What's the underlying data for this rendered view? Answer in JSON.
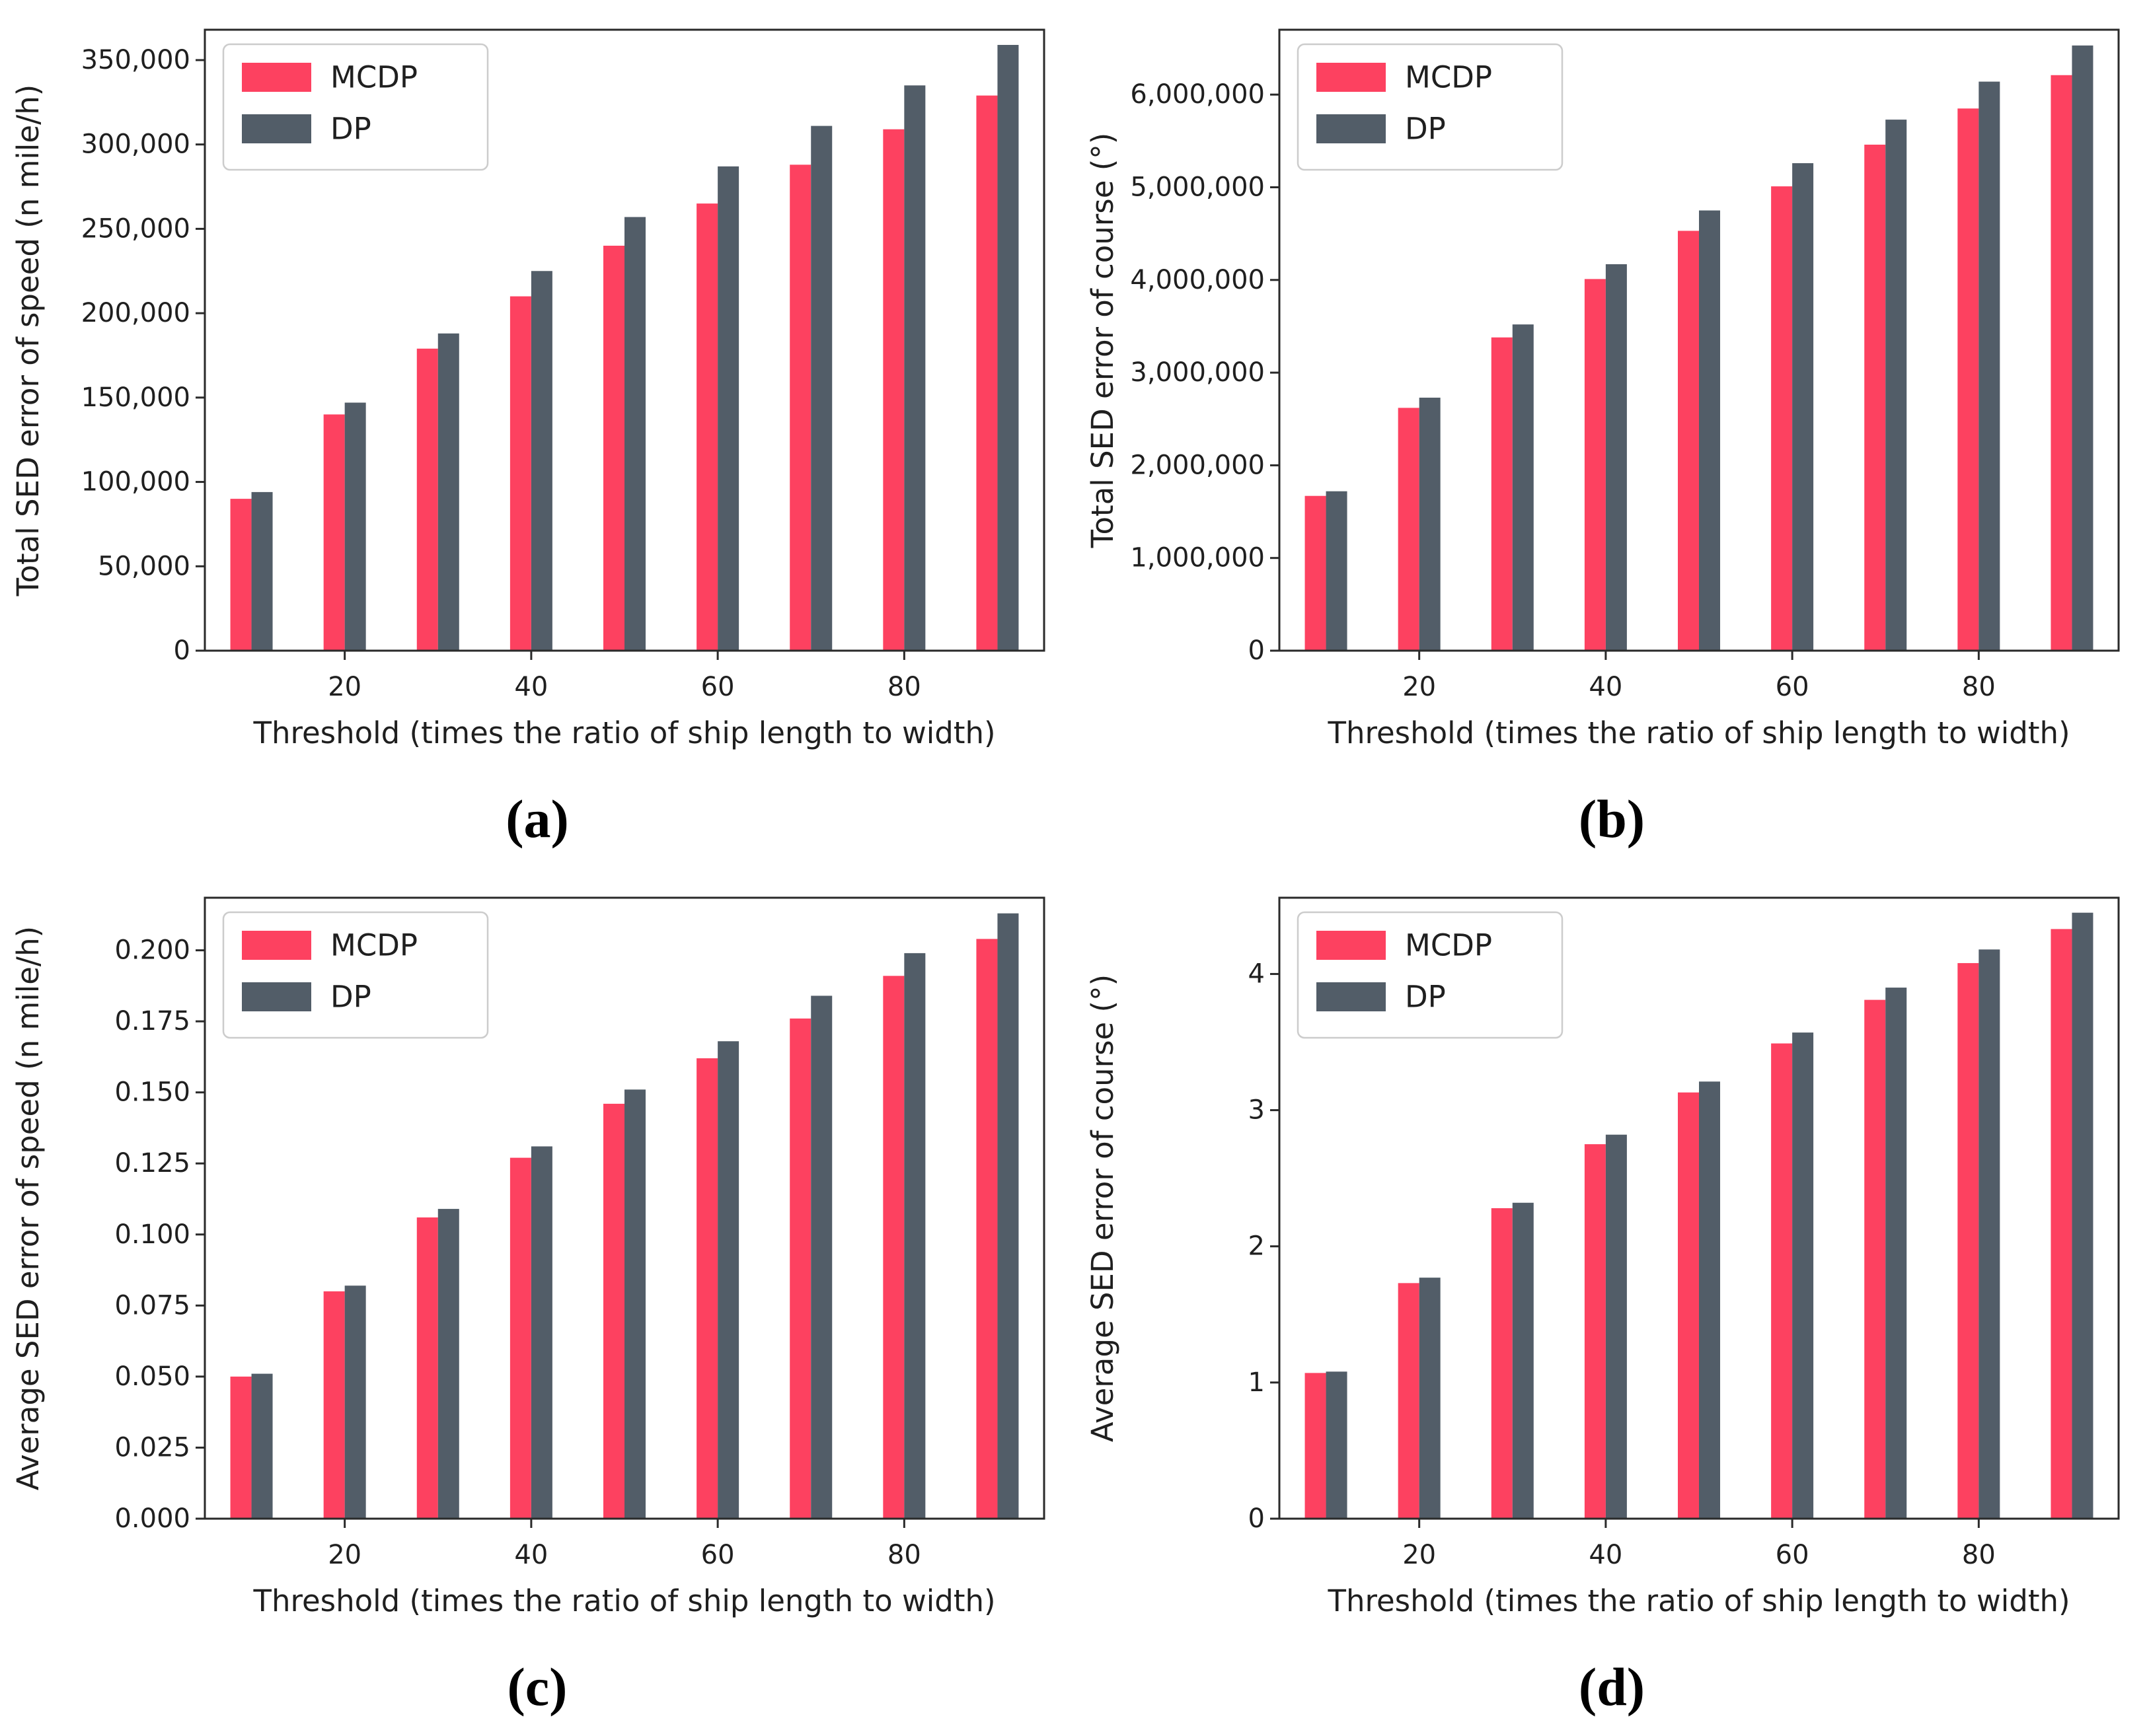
{
  "figure": {
    "background": "#ffffff",
    "captions": [
      "(a)",
      "(b)",
      "(c)",
      "(d)"
    ]
  },
  "colors": {
    "mcdp": "#fd4160",
    "dp": "#525d68",
    "axis": "#2a2a2a",
    "text": "#1f1f1f",
    "legend_border": "#cccccc",
    "legend_bg": "#ffffff"
  },
  "legend": {
    "location": "upper left",
    "items": [
      {
        "label": "MCDP",
        "color_key": "mcdp"
      },
      {
        "label": "DP",
        "color_key": "dp"
      }
    ]
  },
  "chart_data": [
    {
      "type": "bar",
      "panel": "a",
      "xlabel": "Threshold (times the ratio of ship length to width)",
      "ylabel": "Total SED error of speed (n mile/h)",
      "categories": [
        10,
        20,
        30,
        40,
        50,
        60,
        70,
        80,
        90
      ],
      "xtick_labels": [
        20,
        40,
        60,
        80
      ],
      "ylim": [
        0,
        368000
      ],
      "yticks": [
        0,
        50000,
        100000,
        150000,
        200000,
        250000,
        300000,
        350000
      ],
      "ytick_format": "comma",
      "grid": false,
      "legend_position": "upper-left",
      "series": [
        {
          "name": "MCDP",
          "values": [
            90000,
            140000,
            179000,
            210000,
            240000,
            265000,
            288000,
            309000,
            329000
          ]
        },
        {
          "name": "DP",
          "values": [
            94000,
            147000,
            188000,
            225000,
            257000,
            287000,
            311000,
            335000,
            359000
          ]
        }
      ]
    },
    {
      "type": "bar",
      "panel": "b",
      "xlabel": "Threshold (times the ratio of ship length to width)",
      "ylabel": "Total SED error of course (°)",
      "categories": [
        10,
        20,
        30,
        40,
        50,
        60,
        70,
        80,
        90
      ],
      "xtick_labels": [
        20,
        40,
        60,
        80
      ],
      "ylim": [
        0,
        6700000
      ],
      "yticks": [
        0,
        1000000,
        2000000,
        3000000,
        4000000,
        5000000,
        6000000
      ],
      "ytick_format": "comma",
      "grid": false,
      "legend_position": "upper-left",
      "series": [
        {
          "name": "MCDP",
          "values": [
            1670000,
            2620000,
            3380000,
            4010000,
            4530000,
            5010000,
            5460000,
            5850000,
            6210000
          ]
        },
        {
          "name": "DP",
          "values": [
            1720000,
            2730000,
            3520000,
            4170000,
            4750000,
            5260000,
            5730000,
            6140000,
            6530000
          ]
        }
      ]
    },
    {
      "type": "bar",
      "panel": "c",
      "xlabel": "Threshold (times the ratio of ship length to width)",
      "ylabel": "Average SED error of speed (n mile/h)",
      "categories": [
        10,
        20,
        30,
        40,
        50,
        60,
        70,
        80,
        90
      ],
      "xtick_labels": [
        20,
        40,
        60,
        80
      ],
      "ylim": [
        0,
        0.2185
      ],
      "yticks": [
        0.0,
        0.025,
        0.05,
        0.075,
        0.1,
        0.125,
        0.15,
        0.175,
        0.2
      ],
      "ytick_format": "fixed3",
      "grid": false,
      "legend_position": "upper-left",
      "series": [
        {
          "name": "MCDP",
          "values": [
            0.05,
            0.08,
            0.106,
            0.127,
            0.146,
            0.162,
            0.176,
            0.191,
            0.204
          ]
        },
        {
          "name": "DP",
          "values": [
            0.051,
            0.082,
            0.109,
            0.131,
            0.151,
            0.168,
            0.184,
            0.199,
            0.213
          ]
        }
      ]
    },
    {
      "type": "bar",
      "panel": "d",
      "xlabel": "Threshold (times the ratio of ship length to width)",
      "ylabel": "Average SED error of course (°)",
      "categories": [
        10,
        20,
        30,
        40,
        50,
        60,
        70,
        80,
        90
      ],
      "xtick_labels": [
        20,
        40,
        60,
        80
      ],
      "ylim": [
        0,
        4.56
      ],
      "yticks": [
        0,
        1,
        2,
        3,
        4
      ],
      "ytick_format": "int",
      "grid": false,
      "legend_position": "upper-left",
      "series": [
        {
          "name": "MCDP",
          "values": [
            1.07,
            1.73,
            2.28,
            2.75,
            3.13,
            3.49,
            3.81,
            4.08,
            4.33
          ]
        },
        {
          "name": "DP",
          "values": [
            1.08,
            1.77,
            2.32,
            2.82,
            3.21,
            3.57,
            3.9,
            4.18,
            4.45
          ]
        }
      ]
    }
  ]
}
